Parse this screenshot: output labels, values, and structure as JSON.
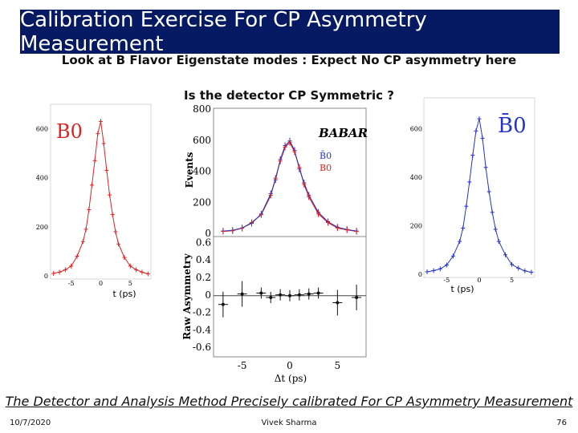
{
  "slide": {
    "title": "Calibration Exercise For CP Asymmetry Measurement",
    "subtitle1": "Look at B Flavor Eigenstate modes : Expect No CP asymmetry here",
    "subtitle2": "Is the detector CP Symmetric ?",
    "caption": "The Detector and Analysis Method Precisely calibrated For CP Asymmetry Measurement",
    "date": "10/7/2020",
    "author": "Vivek Sharma",
    "page": "76"
  },
  "chart_data": [
    {
      "type": "scatter",
      "panel": "left",
      "label": "B0",
      "xlabel": "t (ps)",
      "xticks": [
        -5,
        0,
        5
      ],
      "yticks": [
        0,
        200,
        400,
        600
      ],
      "xlim": [
        -8.5,
        8.5
      ],
      "ylim": [
        0,
        700
      ],
      "color": "#dd2222",
      "x": [
        -8,
        -7,
        -6,
        -5,
        -4,
        -3,
        -2.5,
        -2,
        -1.5,
        -1,
        -0.5,
        0,
        0.5,
        1,
        1.5,
        2,
        2.5,
        3,
        4,
        5,
        6,
        7,
        8
      ],
      "y": [
        10,
        15,
        25,
        40,
        80,
        140,
        190,
        270,
        370,
        470,
        580,
        630,
        540,
        430,
        330,
        250,
        180,
        130,
        75,
        40,
        25,
        15,
        8
      ]
    },
    {
      "type": "scatter",
      "panel": "center-top",
      "brand": "BABAR",
      "ylabel": "Events",
      "yticks": [
        0,
        200,
        400,
        600,
        800
      ],
      "xlim": [
        -8,
        8
      ],
      "ylim": [
        0,
        800
      ],
      "legend": [
        "B̄0",
        "B0"
      ],
      "series": [
        {
          "name": "B̄0",
          "color": "#2233cc",
          "x": [
            -7,
            -6,
            -5,
            -4,
            -3,
            -2,
            -1.5,
            -1,
            -0.5,
            0,
            0.5,
            1,
            1.5,
            2,
            3,
            4,
            5,
            6,
            7
          ],
          "y": [
            20,
            25,
            40,
            70,
            130,
            260,
            350,
            480,
            570,
            600,
            540,
            420,
            330,
            250,
            140,
            80,
            45,
            30,
            20
          ]
        },
        {
          "name": "B0",
          "color": "#dd2222",
          "x": [
            -7,
            -6,
            -5,
            -4,
            -3,
            -2,
            -1.5,
            -1,
            -0.5,
            0,
            0.5,
            1,
            1.5,
            2,
            3,
            4,
            5,
            6,
            7
          ],
          "y": [
            18,
            22,
            38,
            75,
            125,
            250,
            360,
            470,
            560,
            590,
            530,
            430,
            320,
            240,
            130,
            75,
            40,
            28,
            18
          ]
        }
      ]
    },
    {
      "type": "scatter",
      "panel": "center-bottom",
      "ylabel": "Raw Asymmetry",
      "xlabel": "Δt (ps)",
      "xticks": [
        -5,
        0,
        5
      ],
      "yticks": [
        -0.6,
        -0.4,
        -0.2,
        0,
        0.2,
        0.4,
        0.6
      ],
      "xlim": [
        -8,
        8
      ],
      "ylim": [
        -0.7,
        0.65
      ],
      "color": "#111111",
      "x": [
        -7,
        -5,
        -3,
        -2,
        -1,
        0,
        1,
        2,
        3,
        5,
        7
      ],
      "y": [
        -0.1,
        0.02,
        0.03,
        -0.02,
        0.01,
        0.0,
        0.01,
        0.02,
        0.03,
        -0.08,
        -0.02
      ]
    },
    {
      "type": "scatter",
      "panel": "right",
      "label": "B̄0",
      "xlabel": "t (ps)",
      "xticks": [
        -5,
        0,
        5
      ],
      "yticks": [
        0,
        200,
        400,
        600
      ],
      "xlim": [
        -8.5,
        8.5
      ],
      "ylim": [
        0,
        700
      ],
      "color": "#2233cc",
      "x": [
        -8,
        -7,
        -6,
        -5,
        -4,
        -3,
        -2.5,
        -2,
        -1.5,
        -1,
        -0.5,
        0,
        0.5,
        1,
        1.5,
        2,
        2.5,
        3,
        4,
        5,
        6,
        7,
        8
      ],
      "y": [
        10,
        15,
        22,
        38,
        75,
        135,
        190,
        280,
        380,
        490,
        590,
        640,
        560,
        440,
        340,
        255,
        185,
        135,
        80,
        40,
        25,
        14,
        8
      ]
    }
  ]
}
